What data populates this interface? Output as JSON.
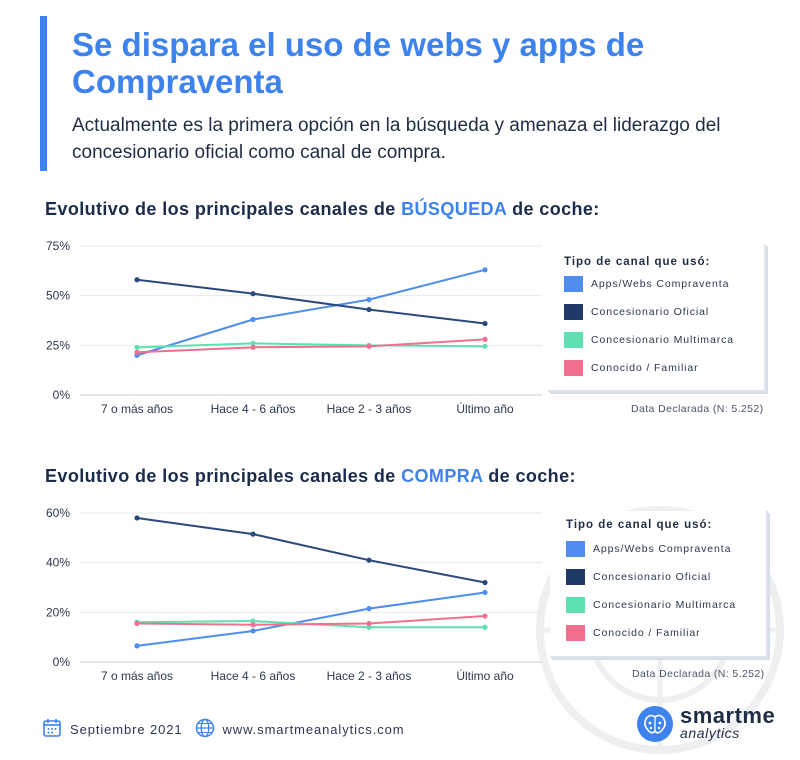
{
  "header": {
    "title": "Se dispara el uso de webs y apps de Compraventa",
    "subtitle": "Actualmente es la primera opción en la búsqueda y amenaza el liderazgo del concesionario oficial como canal de compra."
  },
  "colors": {
    "accent": "#3e82ee",
    "apps": "#4f8def",
    "oficial": "#2a4a7c",
    "multimarca": "#5fe0b0",
    "conocido": "#f0708e"
  },
  "chart_data": [
    {
      "type": "line",
      "title_pre": "Evolutivo de los principales canales de ",
      "title_highlight": "BÚSQUEDA",
      "title_post": " de coche:",
      "categories": [
        "7 o más años",
        "Hace 4 - 6 años",
        "Hace 2 - 3 años",
        "Último año"
      ],
      "ylim": [
        0,
        75
      ],
      "yticks": [
        0,
        25,
        50,
        75
      ],
      "ytick_labels": [
        "0%",
        "25%",
        "50%",
        "75%"
      ],
      "legend_title": "Tipo de canal que usó:",
      "note": "Data Declarada (N: 5.252)",
      "series": [
        {
          "name": "Apps/Webs Compraventa",
          "color_key": "apps",
          "values": [
            20,
            38,
            48,
            63
          ]
        },
        {
          "name": "Concesionario Oficial",
          "color_key": "oficial",
          "values": [
            58,
            51,
            43,
            36
          ]
        },
        {
          "name": "Concesionario Multimarca",
          "color_key": "multimarca",
          "values": [
            24,
            26,
            25,
            24.5
          ]
        },
        {
          "name": "Conocido / Familiar",
          "color_key": "conocido",
          "values": [
            21.5,
            24,
            24.5,
            28
          ]
        }
      ]
    },
    {
      "type": "line",
      "title_pre": "Evolutivo de los principales canales de ",
      "title_highlight": "COMPRA",
      "title_post": " de coche:",
      "categories": [
        "7 o más años",
        "Hace 4 - 6 años",
        "Hace 2 - 3 años",
        "Último año"
      ],
      "ylim": [
        0,
        60
      ],
      "yticks": [
        0,
        20,
        40,
        60
      ],
      "ytick_labels": [
        "0%",
        "20%",
        "40%",
        "60%"
      ],
      "legend_title": "Tipo de canal que usó:",
      "note": "Data Declarada (N: 5.252)",
      "series": [
        {
          "name": "Apps/Webs Compraventa",
          "color_key": "apps",
          "values": [
            6.5,
            12.5,
            21.5,
            28
          ]
        },
        {
          "name": "Concesionario Oficial",
          "color_key": "oficial",
          "values": [
            58,
            51.5,
            41,
            32
          ]
        },
        {
          "name": "Concesionario Multimarca",
          "color_key": "multimarca",
          "values": [
            16,
            16.5,
            14,
            14
          ]
        },
        {
          "name": "Conocido / Familiar",
          "color_key": "conocido",
          "values": [
            15.5,
            15,
            15.5,
            18.5
          ]
        }
      ]
    }
  ],
  "footer": {
    "date": "Septiembre 2021",
    "url": "www.smartmeanalytics.com"
  },
  "logo": {
    "name": "smartme",
    "tagline": "analytics"
  }
}
